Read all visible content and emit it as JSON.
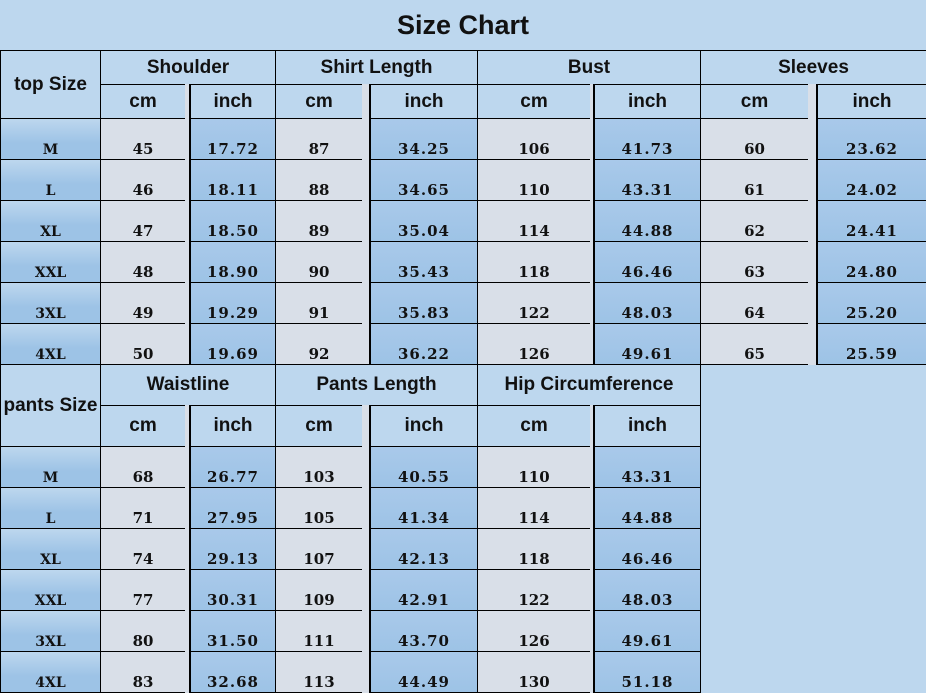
{
  "title": "Size Chart",
  "top": {
    "size_label": "top Size",
    "groups": [
      "Shoulder",
      "Shirt Length",
      "Bust",
      "Sleeves"
    ],
    "unit_cm": "cm",
    "unit_inch": "inch",
    "rows": [
      {
        "size": "M",
        "values": [
          "45",
          "17.72",
          "87",
          "34.25",
          "106",
          "41.73",
          "60",
          "23.62"
        ]
      },
      {
        "size": "L",
        "values": [
          "46",
          "18.11",
          "88",
          "34.65",
          "110",
          "43.31",
          "61",
          "24.02"
        ]
      },
      {
        "size": "XL",
        "values": [
          "47",
          "18.50",
          "89",
          "35.04",
          "114",
          "44.88",
          "62",
          "24.41"
        ]
      },
      {
        "size": "XXL",
        "values": [
          "48",
          "18.90",
          "90",
          "35.43",
          "118",
          "46.46",
          "63",
          "24.80"
        ]
      },
      {
        "size": "3XL",
        "values": [
          "49",
          "19.29",
          "91",
          "35.83",
          "122",
          "48.03",
          "64",
          "25.20"
        ]
      },
      {
        "size": "4XL",
        "values": [
          "50",
          "19.69",
          "92",
          "36.22",
          "126",
          "49.61",
          "65",
          "25.59"
        ]
      }
    ]
  },
  "pants": {
    "size_label": "pants Size",
    "groups": [
      "Waistline",
      "Pants Length",
      "Hip Circumference"
    ],
    "unit_cm": "cm",
    "unit_inch": "inch",
    "rows": [
      {
        "size": "M",
        "values": [
          "68",
          "26.77",
          "103",
          "40.55",
          "110",
          "43.31"
        ]
      },
      {
        "size": "L",
        "values": [
          "71",
          "27.95",
          "105",
          "41.34",
          "114",
          "44.88"
        ]
      },
      {
        "size": "XL",
        "values": [
          "74",
          "29.13",
          "107",
          "42.13",
          "118",
          "46.46"
        ]
      },
      {
        "size": "XXL",
        "values": [
          "77",
          "30.31",
          "109",
          "42.91",
          "122",
          "48.03"
        ]
      },
      {
        "size": "3XL",
        "values": [
          "80",
          "31.50",
          "111",
          "43.70",
          "126",
          "49.61"
        ]
      },
      {
        "size": "4XL",
        "values": [
          "83",
          "32.68",
          "113",
          "44.49",
          "130",
          "51.18"
        ]
      }
    ]
  },
  "colors": {
    "header": "#bdd7ee",
    "cm_cell": "#d9dfe8",
    "inch_cell": "#9dc3e6"
  }
}
